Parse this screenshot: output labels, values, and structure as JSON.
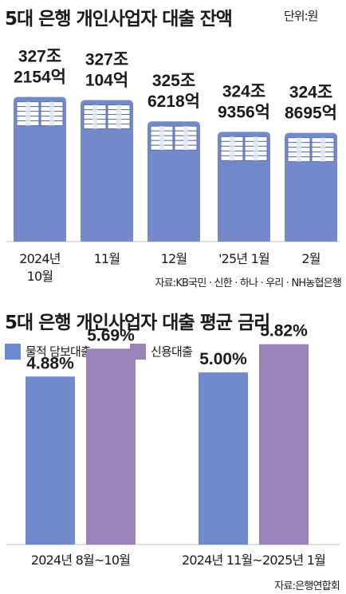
{
  "chart_data": [
    {
      "type": "bar",
      "title": "5대 은행 개인사업자 대출 잔액",
      "unit": "단위:원",
      "categories": [
        "2024년 10월",
        "11월",
        "12월",
        "'25년 1월",
        "2월"
      ],
      "tick_lines": [
        [
          "2024년",
          "10월"
        ],
        [
          "11월"
        ],
        [
          "12월"
        ],
        [
          "'25년 1월"
        ],
        [
          "2월"
        ]
      ],
      "values": [
        327.2154,
        327.0104,
        325.6218,
        324.9356,
        324.8695
      ],
      "value_labels": [
        [
          "327조",
          "2154억"
        ],
        [
          "327조",
          "104억"
        ],
        [
          "325조",
          "6218억"
        ],
        [
          "324조",
          "9356억"
        ],
        [
          "324조",
          "8695억"
        ]
      ],
      "source": "자료:KB국민 · 신한 · 하나 · 우리 · NH농협은행",
      "color": "#7389c9",
      "icon": "stacked-money-bundles-icon"
    },
    {
      "type": "bar",
      "title": "5대 은행 개인사업자 대출 평균 금리",
      "categories": [
        "2024년 8월~10월",
        "2024년 11월~2025년 1월"
      ],
      "series": [
        {
          "name": "물적 담보대출",
          "values": [
            4.88,
            5.0
          ],
          "labels": [
            "4.88%",
            "5.00%"
          ],
          "color": "#6f8bcb"
        },
        {
          "name": "신용대출",
          "values": [
            5.69,
            5.82
          ],
          "labels": [
            "5.69%",
            "5.82%"
          ],
          "color": "#9b83b9"
        }
      ],
      "ylim": [
        0,
        6.6
      ],
      "source": "자료:은행연합회"
    }
  ]
}
